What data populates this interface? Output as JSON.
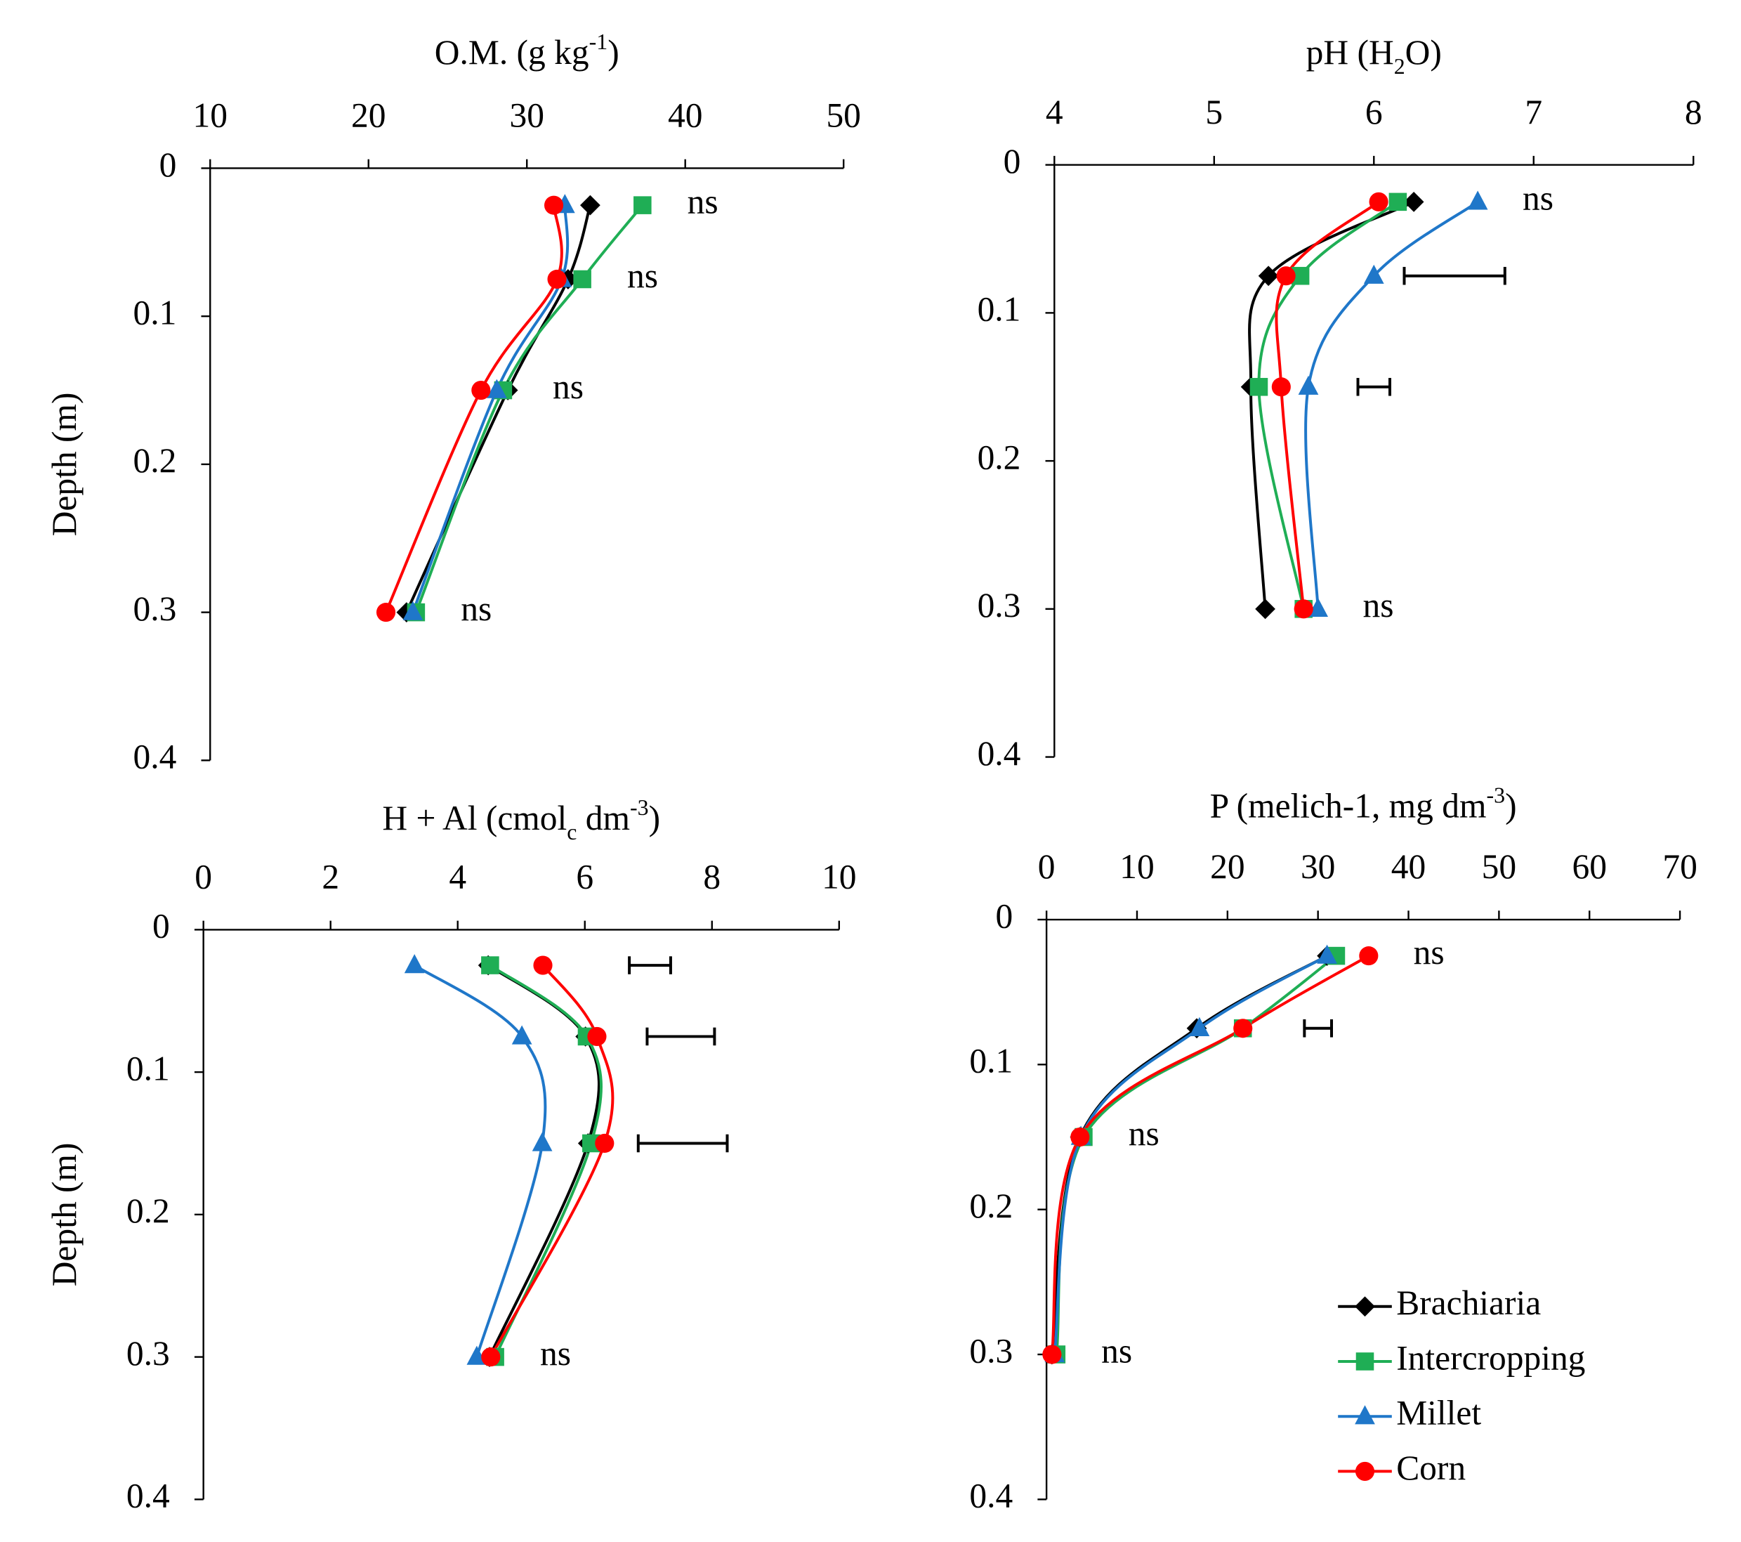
{
  "chart_data": [
    {
      "type": "line",
      "title": [
        {
          "text": "O.M. (g kg"
        },
        {
          "text": "-1",
          "sup": true
        },
        {
          "text": ")"
        }
      ],
      "y_label": "Depth (m)",
      "y": [
        0.025,
        0.075,
        0.15,
        0.3
      ],
      "series": [
        {
          "name": "Brachiaria",
          "color": "#000000",
          "marker": "diamond",
          "values": [
            34.0,
            32.6,
            28.8,
            22.4
          ]
        },
        {
          "name": "Intercropping",
          "color": "#1fae55",
          "marker": "square",
          "values": [
            37.3,
            33.5,
            28.5,
            23.0
          ]
        },
        {
          "name": "Millet",
          "color": "#1f77c9",
          "marker": "triangle",
          "values": [
            32.4,
            32.2,
            28.1,
            22.8
          ]
        },
        {
          "name": "Corn",
          "color": "#ff0000",
          "marker": "circle",
          "values": [
            31.7,
            31.9,
            27.1,
            21.1
          ]
        }
      ],
      "annotations": [
        {
          "text": "ns",
          "y": 0.025
        },
        {
          "text": "ns",
          "y": 0.075
        },
        {
          "text": "ns",
          "y": 0.15
        },
        {
          "text": "ns",
          "y": 0.3
        }
      ],
      "xlim": [
        10,
        50
      ],
      "xticks": [
        10,
        20,
        30,
        40,
        50
      ],
      "ylim": [
        0,
        0.4
      ],
      "yticks": [
        0,
        0.1,
        0.2,
        0.3,
        0.4
      ]
    },
    {
      "type": "line",
      "title": [
        {
          "text": "pH (H"
        },
        {
          "text": "2",
          "sub": true
        },
        {
          "text": "O)"
        }
      ],
      "y": [
        0.025,
        0.075,
        0.15,
        0.3
      ],
      "series": [
        {
          "name": "Brachiaria",
          "color": "#000000",
          "marker": "diamond",
          "values": [
            6.25,
            5.34,
            5.23,
            5.32
          ]
        },
        {
          "name": "Intercropping",
          "color": "#1fae55",
          "marker": "square",
          "values": [
            6.15,
            5.54,
            5.28,
            5.56
          ]
        },
        {
          "name": "Millet",
          "color": "#1f77c9",
          "marker": "triangle",
          "values": [
            6.65,
            6.0,
            5.59,
            5.65
          ]
        },
        {
          "name": "Corn",
          "color": "#ff0000",
          "marker": "circle",
          "values": [
            6.03,
            5.45,
            5.42,
            5.56
          ]
        }
      ],
      "annotations": [
        {
          "text": "ns",
          "y": 0.025
        },
        {
          "text": "ns",
          "y": 0.3
        }
      ],
      "error_bars": [
        {
          "y": 0.075,
          "x": [
            6.19,
            6.82
          ]
        },
        {
          "y": 0.15,
          "x": [
            5.9,
            6.1
          ]
        }
      ],
      "xlim": [
        4,
        8
      ],
      "xticks": [
        4,
        5,
        6,
        7,
        8
      ],
      "ylim": [
        0,
        0.4
      ],
      "yticks": [
        0,
        0.1,
        0.2,
        0.3,
        0.4
      ]
    },
    {
      "type": "line",
      "title": [
        {
          "text": "H + Al (cmol"
        },
        {
          "text": "c",
          "sub": true
        },
        {
          "text": " dm"
        },
        {
          "text": "-3",
          "sup": true
        },
        {
          "text": ")"
        }
      ],
      "y_label": "Depth (m)",
      "y": [
        0.025,
        0.075,
        0.15,
        0.3
      ],
      "series": [
        {
          "name": "Brachiaria",
          "color": "#000000",
          "marker": "diamond",
          "values": [
            4.48,
            6.01,
            6.05,
            4.5
          ]
        },
        {
          "name": "Intercropping",
          "color": "#1fae55",
          "marker": "square",
          "values": [
            4.51,
            6.03,
            6.1,
            4.59
          ]
        },
        {
          "name": "Millet",
          "color": "#1f77c9",
          "marker": "triangle",
          "values": [
            3.32,
            5.01,
            5.33,
            4.3
          ]
        },
        {
          "name": "Corn",
          "color": "#ff0000",
          "marker": "circle",
          "values": [
            5.34,
            6.19,
            6.31,
            4.52
          ]
        }
      ],
      "annotations": [
        {
          "text": "ns",
          "y": 0.3
        }
      ],
      "error_bars": [
        {
          "y": 0.025,
          "x": [
            6.7,
            7.35
          ]
        },
        {
          "y": 0.075,
          "x": [
            6.98,
            8.04
          ]
        },
        {
          "y": 0.15,
          "x": [
            6.84,
            8.24
          ]
        }
      ],
      "xlim": [
        0,
        10
      ],
      "xticks": [
        0,
        2,
        4,
        6,
        8,
        10
      ],
      "ylim": [
        0,
        0.4
      ],
      "yticks": [
        0,
        0.1,
        0.2,
        0.3,
        0.4
      ]
    },
    {
      "type": "line",
      "title": [
        {
          "text": "P (melich-1, mg dm"
        },
        {
          "text": "-3",
          "sup": true
        },
        {
          "text": ")"
        }
      ],
      "y": [
        0.025,
        0.075,
        0.15,
        0.3
      ],
      "series": [
        {
          "name": "Brachiaria",
          "color": "#000000",
          "marker": "diamond",
          "values": [
            31.0,
            16.6,
            3.7,
            0.6
          ]
        },
        {
          "name": "Intercropping",
          "color": "#1fae55",
          "marker": "square",
          "values": [
            32.0,
            21.7,
            4.1,
            1.1
          ]
        },
        {
          "name": "Millet",
          "color": "#1f77c9",
          "marker": "triangle",
          "values": [
            31.0,
            16.9,
            3.8,
            0.9
          ]
        },
        {
          "name": "Corn",
          "color": "#ff0000",
          "marker": "circle",
          "values": [
            35.6,
            21.7,
            3.7,
            0.6
          ]
        }
      ],
      "annotations": [
        {
          "text": "ns",
          "y": 0.025
        },
        {
          "text": "ns",
          "y": 0.15
        },
        {
          "text": "ns",
          "y": 0.3
        }
      ],
      "error_bars": [
        {
          "y": 0.075,
          "x": [
            28.5,
            31.5
          ]
        }
      ],
      "legend": "lower right",
      "xlim": [
        0,
        70
      ],
      "xticks": [
        0,
        10,
        20,
        30,
        40,
        50,
        60,
        70
      ],
      "ylim": [
        0,
        0.4
      ],
      "yticks": [
        0,
        0.1,
        0.2,
        0.3,
        0.4
      ]
    }
  ]
}
